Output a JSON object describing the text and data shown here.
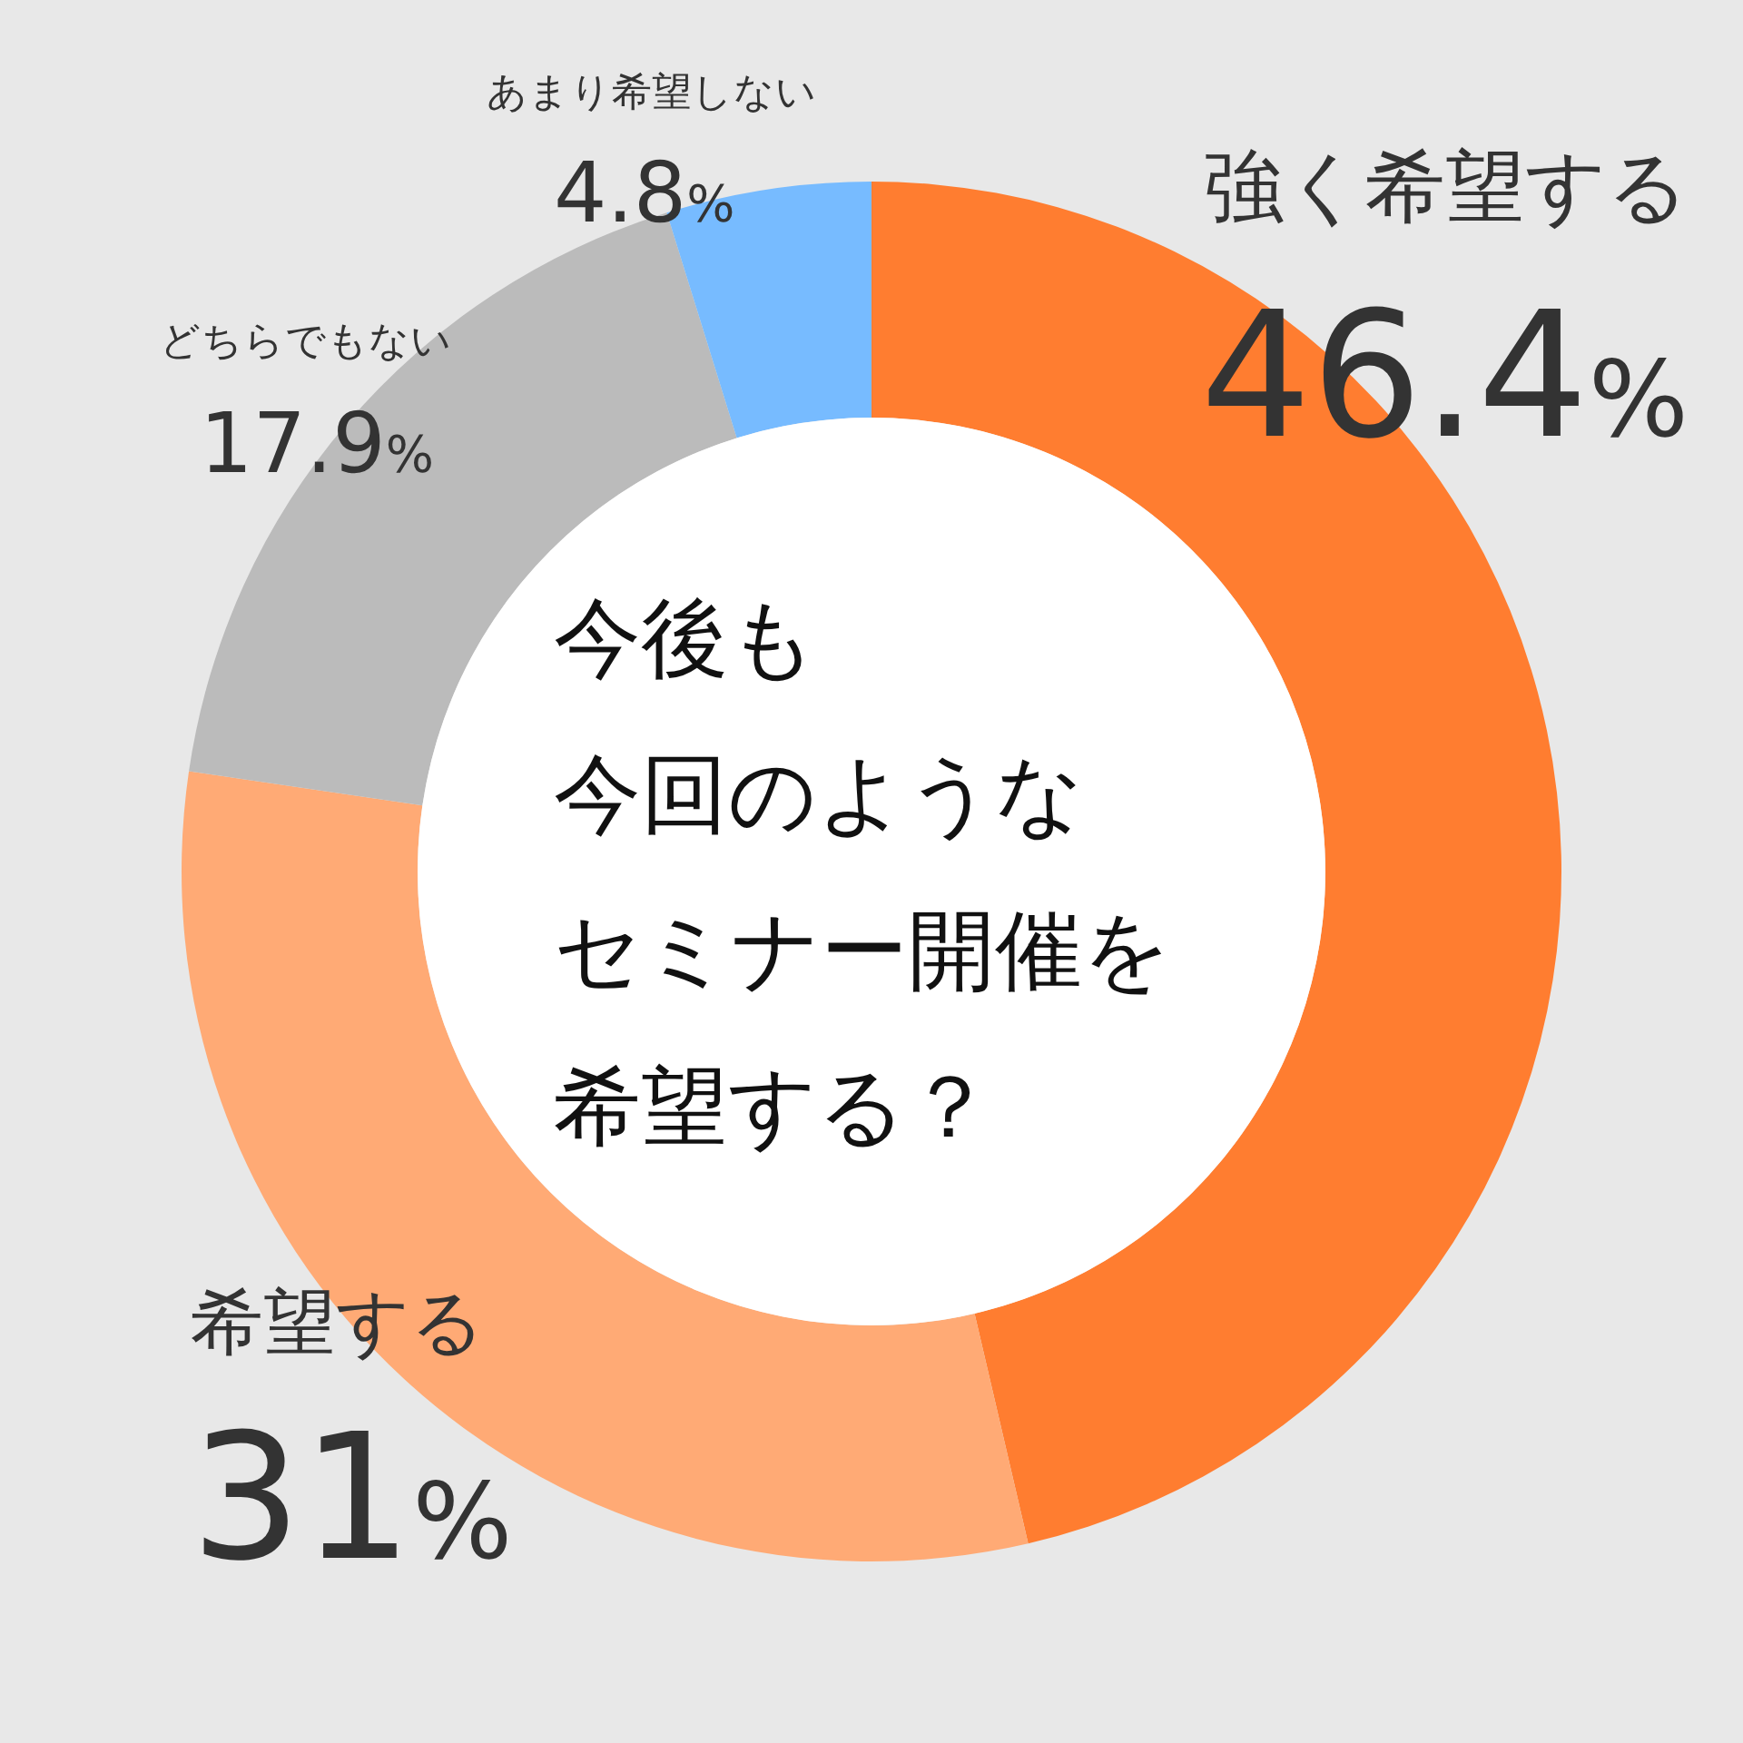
{
  "chart_data": {
    "type": "donut",
    "title": "今後も今回のようなセミナー開催を希望する？",
    "categories": [
      "強く希望する",
      "希望する",
      "どちらでもない",
      "あまり希望しない"
    ],
    "values": [
      46.4,
      31,
      17.9,
      4.8
    ],
    "colors": [
      "#ff7d30",
      "#ffaa75",
      "#bbbbbb",
      "#77bbff"
    ],
    "value_labels": [
      "46.4%",
      "31%",
      "17.9%",
      "4.8%"
    ]
  }
}
